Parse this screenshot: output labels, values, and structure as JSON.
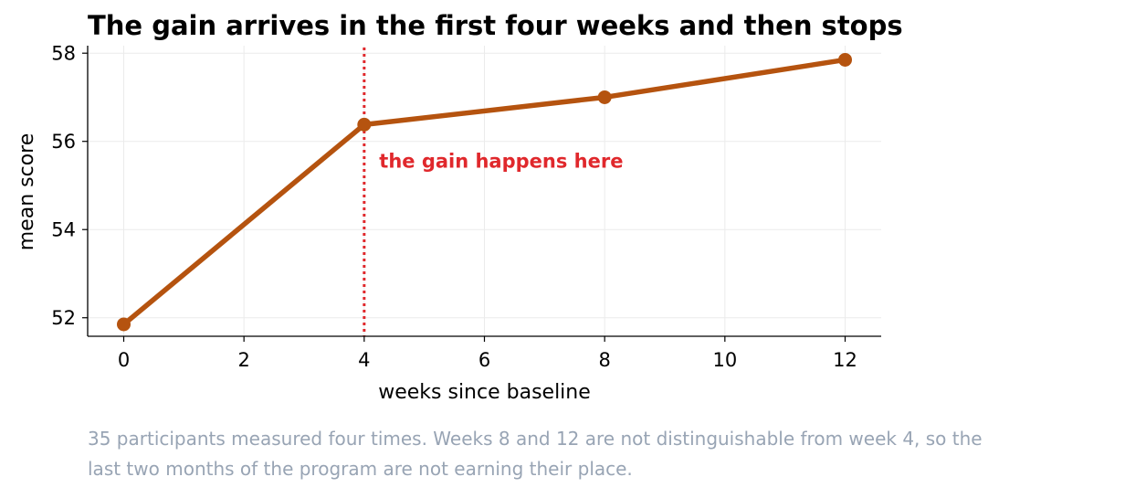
{
  "chart_data": {
    "type": "line",
    "title": "The gain arrives in the first four weeks and then stops",
    "xlabel": "weeks since baseline",
    "ylabel": "mean score",
    "xlim": [
      -0.6,
      12.6
    ],
    "ylim": [
      51.58,
      58.17
    ],
    "xticks": [
      0,
      2,
      4,
      6,
      8,
      10,
      12
    ],
    "yticks": [
      52,
      54,
      56,
      58
    ],
    "grid": true,
    "series": [
      {
        "x": [
          0,
          4,
          8,
          12
        ],
        "y": [
          51.85,
          56.38,
          57.0,
          57.85
        ],
        "color": "#b5530f"
      }
    ],
    "annotation": {
      "text": "the gain happens here",
      "x": 4.25,
      "y": 55.55,
      "vline_x": 4,
      "color": "#e0282c"
    }
  },
  "caption": {
    "line1": "35 participants measured four times. Weeks 8 and 12 are not distinguishable from week 4, so the",
    "line2": "last two months of the program are not earning their place."
  }
}
